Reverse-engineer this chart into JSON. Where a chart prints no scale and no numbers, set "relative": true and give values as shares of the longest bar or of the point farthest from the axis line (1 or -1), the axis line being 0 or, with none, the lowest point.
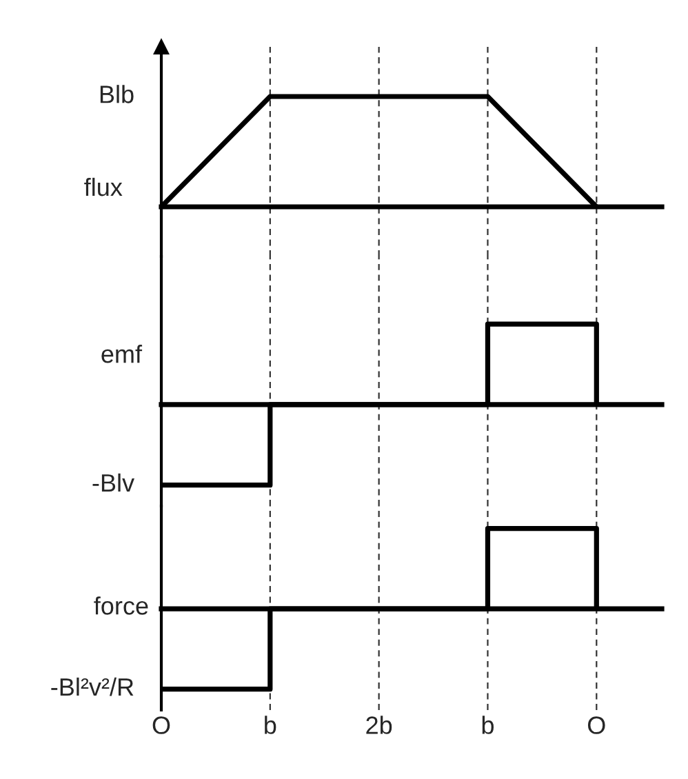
{
  "chart_data": [
    {
      "type": "line",
      "ylabel": "flux",
      "categories": [
        null,
        null,
        null,
        null,
        null
      ],
      "values": [
        0,
        1,
        1,
        1,
        0
      ],
      "color": "#000000",
      "relative": true,
      "tick_labels": false,
      "grid": "x",
      "annotations": [
        "Blb"
      ]
    },
    {
      "type": "step",
      "ylabel": "emf",
      "categories": [
        null,
        null,
        null,
        null,
        null
      ],
      "values": [
        -1,
        0,
        0,
        1,
        0
      ],
      "color": "#000000",
      "relative": true,
      "tick_labels": false,
      "grid": "x",
      "annotations": [
        "-Blv"
      ]
    },
    {
      "type": "step",
      "ylabel": "force",
      "categories": [
        "O",
        "b",
        "2b",
        "b",
        "O"
      ],
      "values": [
        -1,
        0,
        0,
        1,
        0
      ],
      "color": "#000000",
      "relative": true,
      "tick_labels": "x",
      "grid": "x",
      "annotations": [
        "-Bl²v²/R"
      ]
    }
  ]
}
